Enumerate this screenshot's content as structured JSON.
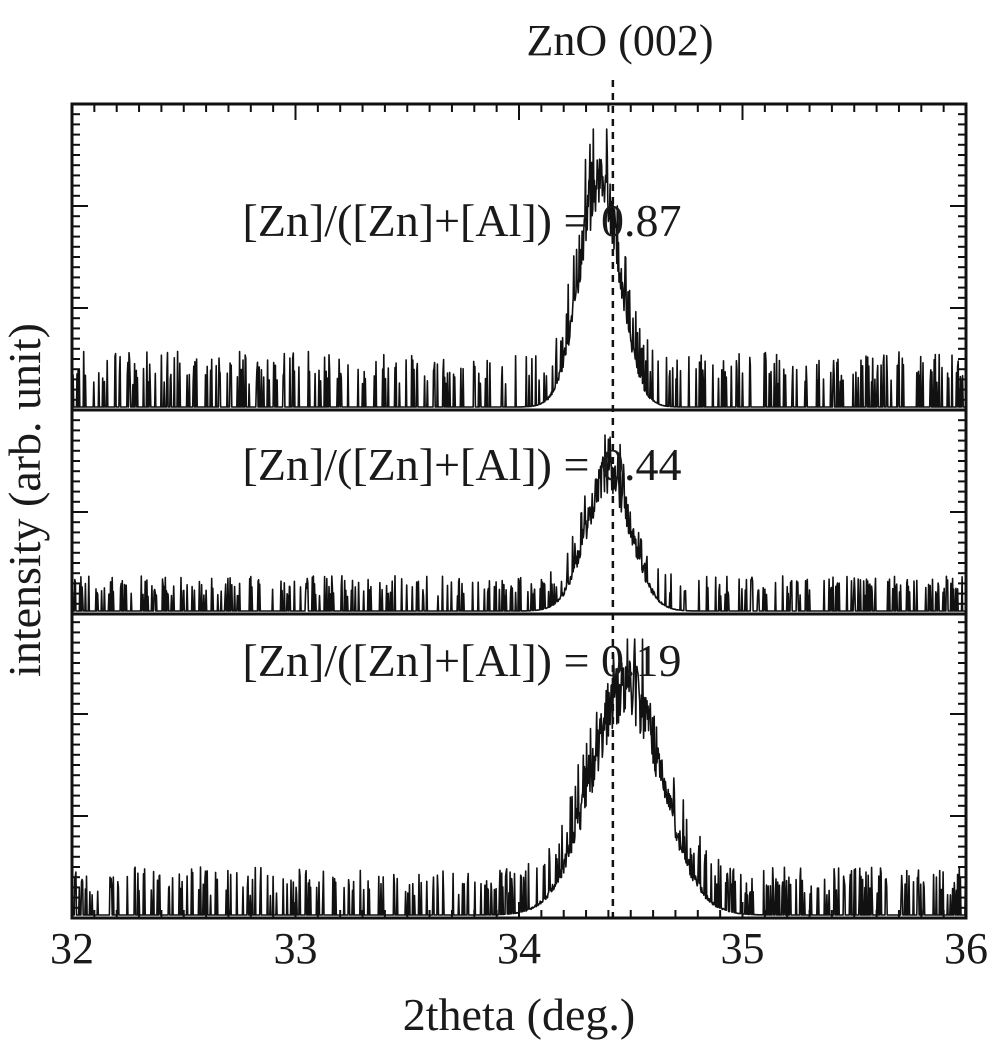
{
  "chart_data": {
    "type": "line",
    "xlabel": "2theta (deg.)",
    "ylabel": "intensity (arb. unit)",
    "xlim": [
      32,
      36
    ],
    "x_ticks": [
      "32",
      "33",
      "34",
      "35",
      "36"
    ],
    "reference_line": {
      "label": "ZnO (002)",
      "x": 34.42
    },
    "series": [
      {
        "label": "[Zn]/([Zn]+[Al]) = 0.87",
        "peak_center": 34.36,
        "peak_width": 0.09,
        "peak_height": 0.82,
        "noise_level": 0.08
      },
      {
        "label": "[Zn]/([Zn]+[Al]) = 0.44",
        "peak_center": 34.4,
        "peak_width": 0.1,
        "peak_height": 0.78,
        "noise_level": 0.08
      },
      {
        "label": "[Zn]/([Zn]+[Al]) = 0.19",
        "peak_center": 34.48,
        "peak_width": 0.16,
        "peak_height": 0.82,
        "noise_level": 0.07
      }
    ],
    "grid": false,
    "legend": "none"
  }
}
